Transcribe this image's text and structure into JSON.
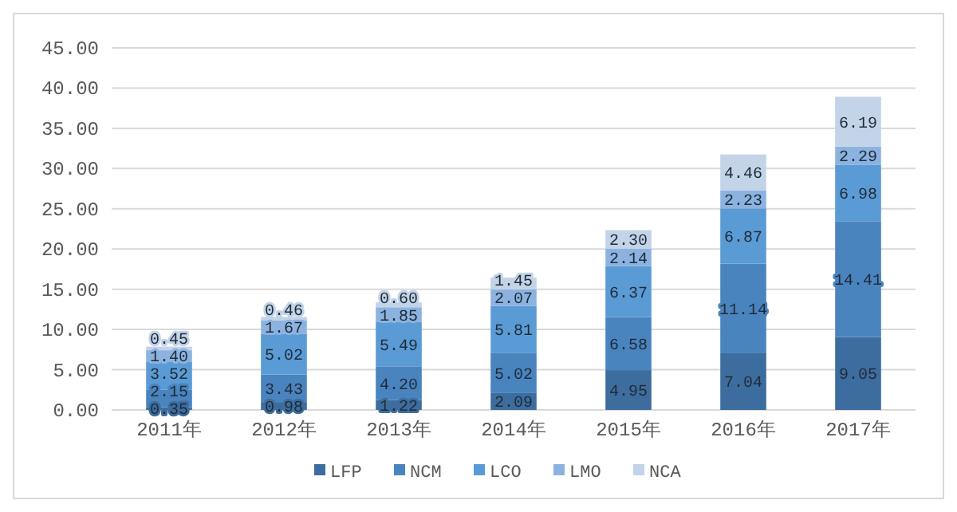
{
  "chart_data": {
    "type": "bar",
    "stacked": true,
    "categories": [
      "2011年",
      "2012年",
      "2013年",
      "2014年",
      "2015年",
      "2016年",
      "2017年"
    ],
    "series": [
      {
        "name": "LFP",
        "color": "#3d6d9e",
        "values": [
          0.35,
          0.98,
          1.22,
          2.09,
          4.95,
          7.04,
          9.05
        ],
        "value_labels": [
          "0.35",
          "0.98",
          "1.22",
          "2.09",
          "4.95",
          "7.04",
          "9.05"
        ]
      },
      {
        "name": "NCM",
        "color": "#4a84bf",
        "values": [
          2.15,
          3.43,
          4.2,
          5.02,
          6.58,
          11.14,
          14.41
        ],
        "value_labels": [
          "2.15",
          "3.43",
          "4.20",
          "5.02",
          "6.58",
          "11.14",
          "14.41"
        ]
      },
      {
        "name": "LCO",
        "color": "#5b9bd5",
        "values": [
          3.52,
          5.02,
          5.49,
          5.81,
          6.37,
          6.87,
          6.98
        ],
        "value_labels": [
          "3.52",
          "5.02",
          "5.49",
          "5.81",
          "6.37",
          "6.87",
          "6.98"
        ]
      },
      {
        "name": "LMO",
        "color": "#8cb3e0",
        "values": [
          1.4,
          1.67,
          1.85,
          2.07,
          2.14,
          2.23,
          2.29
        ],
        "value_labels": [
          "1.40",
          "1.67",
          "1.85",
          "2.07",
          "2.14",
          "2.23",
          "2.29"
        ]
      },
      {
        "name": "NCA",
        "color": "#c3d3e8",
        "values": [
          0.45,
          0.46,
          0.6,
          1.45,
          2.3,
          4.46,
          6.19
        ],
        "value_labels": [
          "0.45",
          "0.46",
          "0.60",
          "1.45",
          "2.30",
          "4.46",
          "6.19"
        ]
      }
    ],
    "ylim": [
      0,
      45
    ],
    "yticks": [
      {
        "value": 0,
        "label": "0.00"
      },
      {
        "value": 5,
        "label": "5.00"
      },
      {
        "value": 10,
        "label": "10.00"
      },
      {
        "value": 15,
        "label": "15.00"
      },
      {
        "value": 20,
        "label": "20.00"
      },
      {
        "value": 25,
        "label": "25.00"
      },
      {
        "value": 30,
        "label": "30.00"
      },
      {
        "value": 35,
        "label": "35.00"
      },
      {
        "value": 40,
        "label": "40.00"
      },
      {
        "value": 45,
        "label": "45.00"
      }
    ],
    "grid": "y",
    "legend": "bottom"
  }
}
